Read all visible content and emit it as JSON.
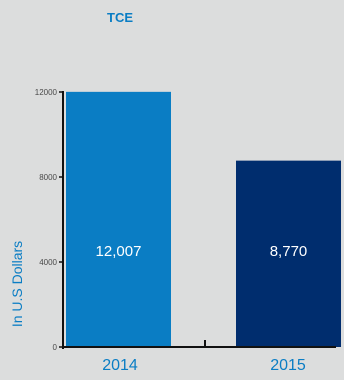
{
  "chart_data": {
    "type": "bar",
    "title": "TCE",
    "ylabel": "In U.S Dollars",
    "xlabel": "",
    "categories": [
      "2014",
      "2015"
    ],
    "values": [
      12007,
      8770
    ],
    "data_labels": [
      "12,007",
      "8,770"
    ],
    "bar_colors": [
      "#0a7dc4",
      "#002d6e"
    ],
    "ylim": [
      0,
      12000
    ],
    "yticks": [
      "0",
      "4000",
      "8000",
      "12000"
    ],
    "grid": false,
    "legend": "none"
  },
  "colors": {
    "background": "#dcdddd",
    "accent": "#0a7dc4",
    "axis": "#111111",
    "tick_text": "#4a4a4a"
  }
}
